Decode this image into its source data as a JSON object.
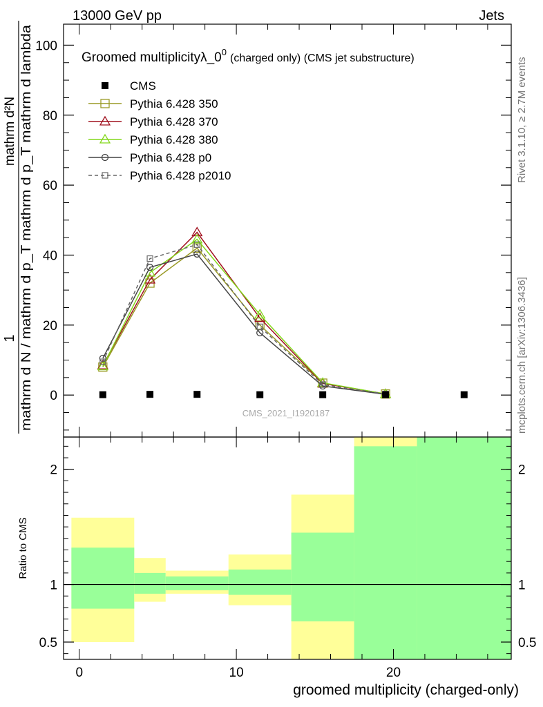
{
  "header": {
    "energy_label": "13000 GeV pp",
    "process_label": "Jets"
  },
  "side_labels": {
    "rivet": "Rivet 3.1.10, ≥ 2.7M events",
    "mcplots": "mcplots.cern.ch [arXiv:1306.3436]"
  },
  "watermark": "CMS_2021_I1920187",
  "colors": {
    "CMS": "#000000",
    "Pythia 6.428 350": "#9a9a26",
    "Pythia 6.428 370": "#a0101e",
    "Pythia 6.428 380": "#84d81c",
    "Pythia 6.428 p0": "#444444",
    "Pythia 6.428 p2010": "#666666",
    "band_inner": "#99ff99",
    "band_outer": "#ffff99"
  },
  "chart_data": [
    {
      "type": "line",
      "title": "Groomed multiplicityλ_0⁰ (charged only) (CMS jet substructure)",
      "title_main": "Groomed multiplicityλ_0",
      "title_sup": "0",
      "title_suffix": "(charged only) (CMS jet substructure)",
      "ylabel_numerator": "1",
      "ylabel_denominator": "mathrm d N / mathrm d p_T mathrm d p_T mathrm d lambda",
      "ylabel_dn": "mathrm d²N",
      "ylim": [
        -12,
        106
      ],
      "xlim": [
        -1,
        27.5
      ],
      "yticks": [
        0,
        20,
        40,
        60,
        80,
        100
      ],
      "legend_position": "top-left",
      "series": [
        {
          "name": "CMS",
          "style": "marker-square",
          "x": [
            1.5,
            4.5,
            7.5,
            11.5,
            15.5,
            19.5,
            24.5
          ],
          "values": [
            0.1,
            0.2,
            0.2,
            0.1,
            0.1,
            0.1,
            0.1
          ]
        },
        {
          "name": "Pythia 6.428 350",
          "style": "open-square",
          "x": [
            1.5,
            4.5,
            7.5,
            11.5,
            15.5,
            19.5
          ],
          "values": [
            8.0,
            32.0,
            42.0,
            20.0,
            3.4,
            0.3
          ]
        },
        {
          "name": "Pythia 6.428 370",
          "style": "open-triangle",
          "x": [
            1.5,
            4.5,
            7.5,
            11.5,
            15.5,
            19.5
          ],
          "values": [
            8.5,
            33.0,
            46.5,
            22.0,
            3.3,
            0.3
          ]
        },
        {
          "name": "Pythia 6.428 380",
          "style": "open-triangle",
          "x": [
            1.5,
            4.5,
            7.5,
            11.5,
            15.5,
            19.5
          ],
          "values": [
            8.2,
            35.0,
            44.5,
            23.0,
            3.5,
            0.3
          ]
        },
        {
          "name": "Pythia 6.428 p0",
          "style": "open-circle",
          "x": [
            1.5,
            4.5,
            7.5,
            11.5,
            15.5,
            19.5
          ],
          "values": [
            10.5,
            36.5,
            40.3,
            17.8,
            2.6,
            0.2
          ]
        },
        {
          "name": "Pythia 6.428 p2010",
          "style": "dashed-small-square",
          "x": [
            1.5,
            4.5,
            7.5,
            11.5,
            15.5,
            19.5
          ],
          "values": [
            9.5,
            39.0,
            43.0,
            19.5,
            3.0,
            0.3
          ]
        }
      ]
    },
    {
      "type": "area",
      "ylabel": "Ratio to CMS",
      "xlabel": "groomed multiplicity (charged-only)",
      "ylim": [
        0.35,
        2.28
      ],
      "xlim": [
        -1,
        27.5
      ],
      "yticks": [
        0.5,
        1,
        2
      ],
      "ytick_labels": [
        "0.5",
        "1",
        "2"
      ],
      "xticks": [
        0,
        10,
        20
      ],
      "xtick_labels": [
        "0",
        "10",
        "20"
      ],
      "reference_line": 1,
      "bins": [
        {
          "x": [
            -0.5,
            3.5
          ],
          "outer": [
            0.5,
            1.58
          ],
          "inner": [
            0.79,
            1.32
          ]
        },
        {
          "x": [
            3.5,
            5.5
          ],
          "outer": [
            0.85,
            1.23
          ],
          "inner": [
            0.92,
            1.1
          ]
        },
        {
          "x": [
            5.5,
            9.5
          ],
          "outer": [
            0.92,
            1.12
          ],
          "inner": [
            0.95,
            1.07
          ]
        },
        {
          "x": [
            9.5,
            13.5
          ],
          "outer": [
            0.82,
            1.26
          ],
          "inner": [
            0.91,
            1.13
          ]
        },
        {
          "x": [
            13.5,
            17.5
          ],
          "outer": [
            0.35,
            1.78
          ],
          "inner": [
            0.68,
            1.45
          ]
        },
        {
          "x": [
            17.5,
            21.5
          ],
          "outer": [
            0.35,
            2.28
          ],
          "inner": [
            0.35,
            2.2
          ]
        },
        {
          "x": [
            21.5,
            27.5
          ],
          "outer": [
            0.35,
            2.28
          ],
          "inner": [
            0.35,
            2.28
          ]
        }
      ]
    }
  ]
}
